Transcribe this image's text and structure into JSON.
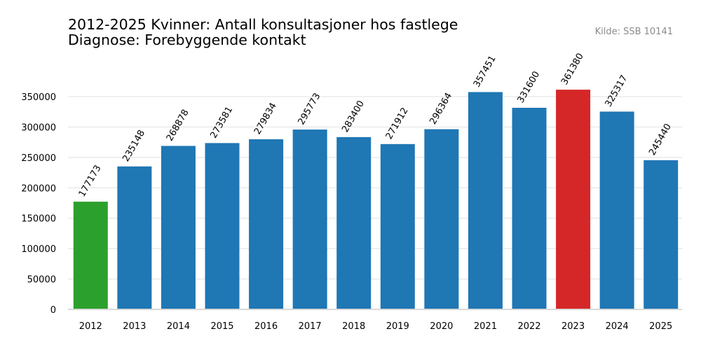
{
  "title_line1": "2012-2025 Kvinner: Antall konsultasjoner hos fastlege",
  "title_line2": "Diagnose: Forebyggende kontakt",
  "source": "Kilde: SSB 10141",
  "chart_data": {
    "type": "bar",
    "categories": [
      "2012",
      "2013",
      "2014",
      "2015",
      "2016",
      "2017",
      "2018",
      "2019",
      "2020",
      "2021",
      "2022",
      "2023",
      "2024",
      "2025"
    ],
    "values": [
      177173,
      235148,
      268878,
      273581,
      279834,
      295773,
      283400,
      271912,
      296364,
      357451,
      331600,
      361380,
      325317,
      245440
    ],
    "colors": [
      "#2ca02c",
      "#1f77b4",
      "#1f77b4",
      "#1f77b4",
      "#1f77b4",
      "#1f77b4",
      "#1f77b4",
      "#1f77b4",
      "#1f77b4",
      "#1f77b4",
      "#1f77b4",
      "#d62728",
      "#1f77b4",
      "#1f77b4"
    ],
    "yticks": [
      0,
      50000,
      100000,
      150000,
      200000,
      250000,
      300000,
      350000
    ],
    "ylim": [
      0,
      400000
    ],
    "grid": true
  }
}
